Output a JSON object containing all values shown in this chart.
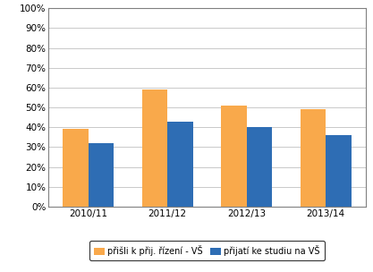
{
  "categories": [
    "2010/11",
    "2011/12",
    "2012/13",
    "2013/14"
  ],
  "series1_values": [
    0.39,
    0.59,
    0.51,
    0.49
  ],
  "series2_values": [
    0.32,
    0.43,
    0.4,
    0.36
  ],
  "series1_label": "přišli k přij. řízení - VŠ",
  "series2_label": "přijatí ke studiu na VŠ",
  "series1_color": "#F9A94B",
  "series2_color": "#2E6DB4",
  "ylim": [
    0,
    1.0
  ],
  "yticks": [
    0.0,
    0.1,
    0.2,
    0.3,
    0.4,
    0.5,
    0.6,
    0.7,
    0.8,
    0.9,
    1.0
  ],
  "ytick_labels": [
    "0%",
    "10%",
    "20%",
    "30%",
    "40%",
    "50%",
    "60%",
    "70%",
    "80%",
    "90%",
    "100%"
  ],
  "background_color": "#FFFFFF",
  "grid_color": "#C0C0C0",
  "bar_width": 0.32,
  "legend_box_color": "#FFFFFF",
  "legend_edge_color": "#000000",
  "spine_color": "#808080",
  "tick_label_fontsize": 7.5,
  "legend_fontsize": 7.0
}
